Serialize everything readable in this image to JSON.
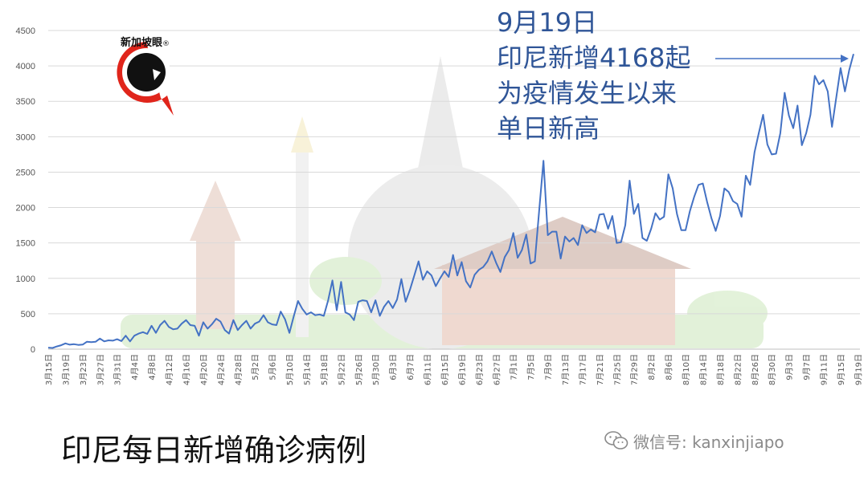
{
  "colors": {
    "line": "#4472c4",
    "annotation": "#2f5597",
    "logo_red": "#e0251b"
  },
  "logo": {
    "text": "新加坡眼",
    "mark": "®"
  },
  "annotation": {
    "lines": [
      "9月19日",
      "印尼新增4168起",
      "为疫情发生以来",
      "单日新高"
    ]
  },
  "title": "印尼每日新增确诊病例",
  "watermark": {
    "icon": "wechat-icon",
    "text": "微信号: kanxinjiapo"
  },
  "chart_data": {
    "type": "line",
    "title": "印尼每日新增确诊病例",
    "ylim": [
      0,
      4500
    ],
    "yticks": [
      0,
      500,
      1000,
      1500,
      2000,
      2500,
      3000,
      3500,
      4000,
      4500
    ],
    "grid": true,
    "legend": "none",
    "start_date": "2020-03-15",
    "xtick_labels": [
      "3月15日",
      "3月19日",
      "3月23日",
      "3月27日",
      "3月31日",
      "4月4日",
      "4月8日",
      "4月12日",
      "4月16日",
      "4月20日",
      "4月24日",
      "4月28日",
      "5月2日",
      "5月6日",
      "5月10日",
      "5月14日",
      "5月18日",
      "5月22日",
      "5月26日",
      "5月30日",
      "6月3日",
      "6月7日",
      "6月11日",
      "6月15日",
      "6月19日",
      "6月23日",
      "6月27日",
      "7月1日",
      "7月5日",
      "7月9日",
      "7月13日",
      "7月17日",
      "7月21日",
      "7月25日",
      "7月29日",
      "8月2日",
      "8月6日",
      "8月10日",
      "8月14日",
      "8月18日",
      "8月22日",
      "8月26日",
      "8月30日",
      "9月3日",
      "9月7日",
      "9月11日",
      "9月15日",
      "9月19日"
    ],
    "series": [
      {
        "values": [
          21,
          17,
          38,
          55,
          82,
          64,
          70,
          60,
          65,
          105,
          100,
          104,
          150,
          110,
          125,
          120,
          140,
          115,
          190,
          110,
          190,
          220,
          240,
          215,
          330,
          230,
          340,
          400,
          315,
          280,
          290,
          360,
          410,
          340,
          330,
          190,
          380,
          290,
          350,
          430,
          390,
          270,
          220,
          410,
          270,
          340,
          400,
          290,
          360,
          390,
          480,
          380,
          350,
          340,
          530,
          420,
          230,
          460,
          680,
          570,
          490,
          520,
          480,
          490,
          470,
          690,
          970,
          550,
          950,
          520,
          490,
          410,
          670,
          690,
          680,
          520,
          690,
          470,
          600,
          680,
          580,
          700,
          990,
          670,
          840,
          1040,
          1240,
          980,
          1100,
          1040,
          890,
          1000,
          1100,
          1020,
          1330,
          1040,
          1230,
          960,
          870,
          1050,
          1120,
          1160,
          1240,
          1380,
          1220,
          1090,
          1300,
          1400,
          1640,
          1290,
          1400,
          1620,
          1210,
          1240,
          1950,
          2660,
          1610,
          1660,
          1660,
          1280,
          1590,
          1520,
          1570,
          1470,
          1750,
          1640,
          1690,
          1650,
          1900,
          1910,
          1700,
          1880,
          1500,
          1510,
          1750,
          2380,
          1910,
          2050,
          1570,
          1530,
          1700,
          1920,
          1830,
          1870,
          2470,
          2270,
          1910,
          1680,
          1680,
          1950,
          2150,
          2320,
          2340,
          2080,
          1850,
          1670,
          1880,
          2270,
          2220,
          2090,
          2050,
          1870,
          2450,
          2320,
          2780,
          3050,
          3310,
          2890,
          2750,
          2760,
          3050,
          3620,
          3300,
          3120,
          3440,
          2880,
          3050,
          3310,
          3860,
          3740,
          3800,
          3640,
          3140,
          3560,
          3970,
          3640,
          3940,
          4168
        ]
      }
    ]
  }
}
